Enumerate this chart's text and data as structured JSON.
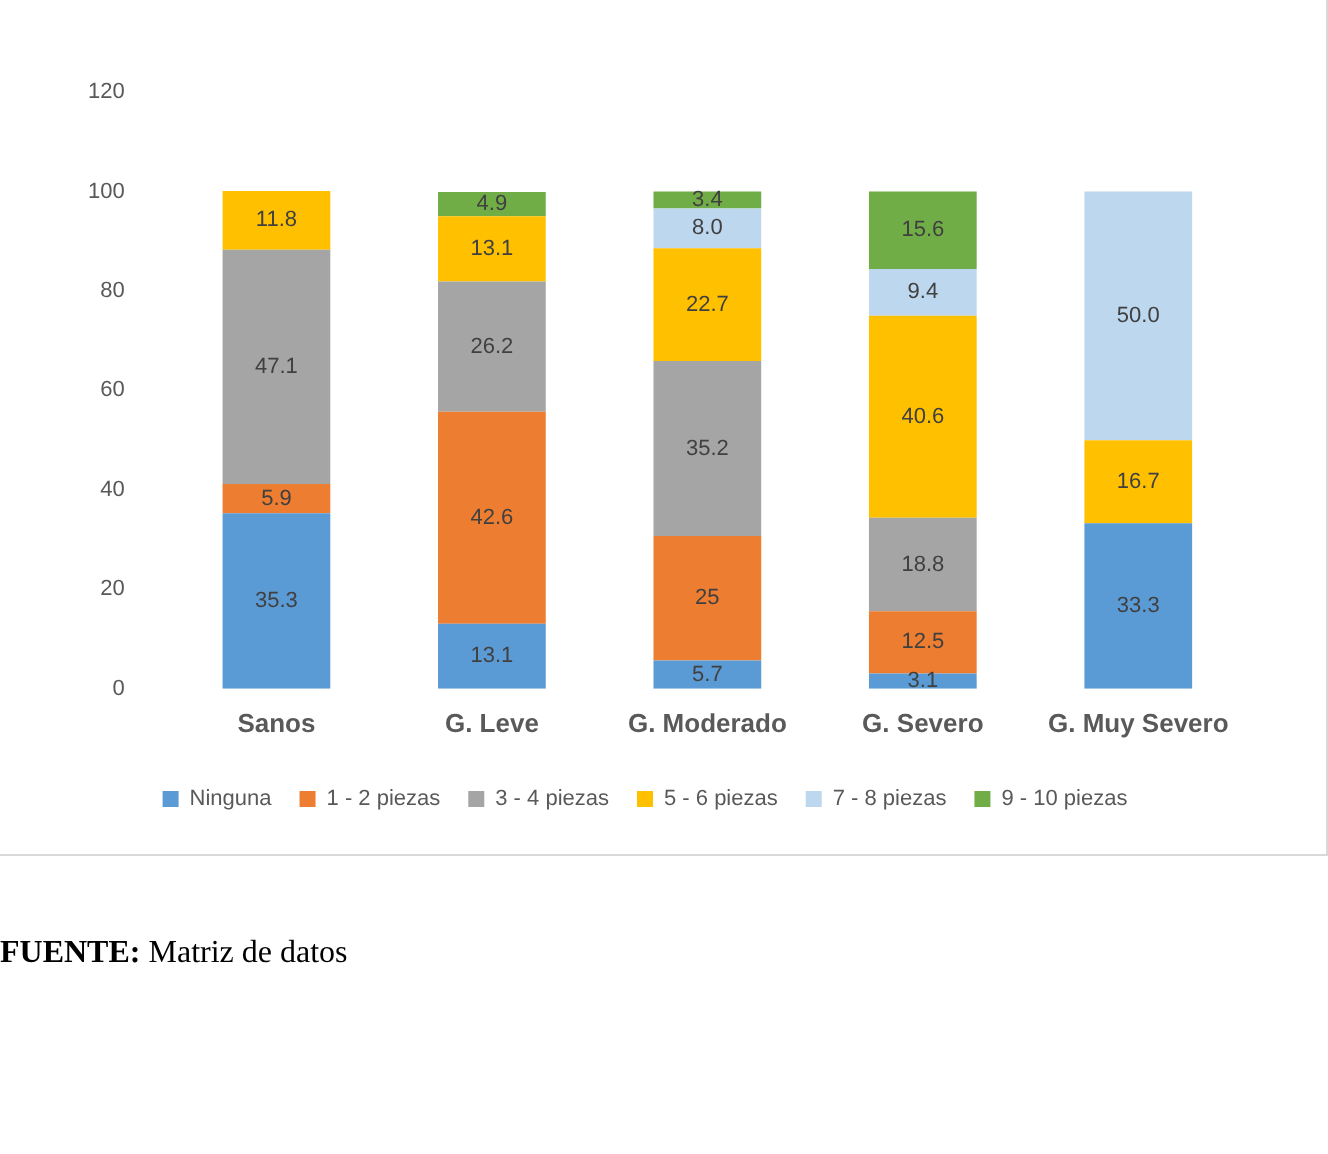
{
  "chart_data": {
    "type": "bar",
    "stacked": true,
    "categories": [
      "Sanos",
      "G. Leve",
      "G. Moderado",
      "G. Severo",
      "G. Muy Severo"
    ],
    "series": [
      {
        "name": "Ninguna",
        "color": "#5b9bd5",
        "values": [
          35.3,
          13.1,
          5.7,
          3.1,
          33.3
        ],
        "value_labels": [
          "35.3",
          "13.1",
          "5.7",
          "3.1",
          "33.3"
        ]
      },
      {
        "name": "1 - 2 piezas",
        "color": "#ed7d31",
        "values": [
          5.9,
          42.6,
          25,
          12.5,
          null
        ],
        "value_labels": [
          "5.9",
          "42.6",
          "25",
          "12.5",
          null
        ]
      },
      {
        "name": "3 - 4 piezas",
        "color": "#a5a5a5",
        "values": [
          47.1,
          26.2,
          35.2,
          18.8,
          null
        ],
        "value_labels": [
          "47.1",
          "26.2",
          "35.2",
          "18.8",
          null
        ]
      },
      {
        "name": "5 - 6 piezas",
        "color": "#ffc000",
        "values": [
          11.8,
          13.1,
          22.7,
          40.6,
          16.7
        ],
        "value_labels": [
          "11.8",
          "13.1",
          "22.7",
          "40.6",
          "16.7"
        ]
      },
      {
        "name": "7 - 8 piezas",
        "color": "#bdd7ee",
        "values": [
          null,
          null,
          8.0,
          9.4,
          50.0
        ],
        "value_labels": [
          null,
          null,
          "8.0",
          "9.4",
          "50.0"
        ]
      },
      {
        "name": "9 - 10 piezas",
        "color": "#70ad47",
        "values": [
          null,
          4.9,
          3.4,
          15.6,
          null
        ],
        "value_labels": [
          null,
          "4.9",
          "3.4",
          "15.6",
          null
        ]
      }
    ],
    "ylim": [
      0,
      120
    ],
    "yticks": [
      0,
      20,
      40,
      60,
      80,
      100,
      120
    ],
    "grid": false,
    "legend": "bottom",
    "annotations": [
      "FUENTE: Matriz de datos"
    ]
  }
}
